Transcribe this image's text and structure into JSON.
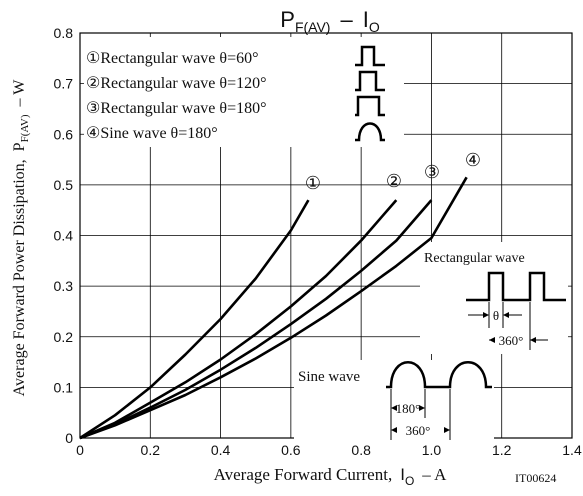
{
  "chart_data": {
    "type": "line",
    "title": "PF(AV) − IO",
    "title_parts": {
      "p": "P",
      "p_sub": "F(AV)",
      "dash": "–",
      "i": "I",
      "i_sub": "O"
    },
    "xlabel": "Average Forward Current, IO – A",
    "xlabel_parts": {
      "text": "Average Forward Current,",
      "i": "I",
      "i_sub": "O",
      "unit": "– A"
    },
    "ylabel": "Average Forward Power Dissipation, PF(AV) – W",
    "ylabel_parts": {
      "text": "Average Forward Power Dissipation,",
      "p": "P",
      "p_sub": "F(AV)",
      "unit": "– W"
    },
    "xlim": [
      0,
      1.4
    ],
    "ylim": [
      0,
      0.8
    ],
    "x_ticks": [
      "0",
      "0.2",
      "0.4",
      "0.6",
      "0.8",
      "1.0",
      "1.2",
      "1.4"
    ],
    "y_ticks": [
      "0",
      "0.1",
      "0.2",
      "0.3",
      "0.4",
      "0.5",
      "0.6",
      "0.7",
      "0.8"
    ],
    "grid": true,
    "legend": [
      {
        "marker": "①",
        "text": "Rectangular wave θ=60°",
        "shape": "rect-narrow"
      },
      {
        "marker": "②",
        "text": "Rectangular wave θ=120°",
        "shape": "rect"
      },
      {
        "marker": "③",
        "text": "Rectangular wave θ=180°",
        "shape": "rect-wide"
      },
      {
        "marker": "④",
        "text": "Sine wave θ=180°",
        "shape": "sine"
      }
    ],
    "series": [
      {
        "marker": "①",
        "x": [
          0,
          0.1,
          0.2,
          0.3,
          0.4,
          0.5,
          0.6,
          0.65
        ],
        "y": [
          0,
          0.045,
          0.1,
          0.165,
          0.235,
          0.315,
          0.41,
          0.47
        ]
      },
      {
        "marker": "②",
        "x": [
          0,
          0.1,
          0.2,
          0.3,
          0.4,
          0.5,
          0.6,
          0.7,
          0.8,
          0.9
        ],
        "y": [
          0,
          0.03,
          0.07,
          0.11,
          0.155,
          0.205,
          0.26,
          0.32,
          0.39,
          0.47
        ]
      },
      {
        "marker": "③",
        "x": [
          0,
          0.1,
          0.2,
          0.3,
          0.4,
          0.5,
          0.6,
          0.7,
          0.8,
          0.9,
          1.0
        ],
        "y": [
          0,
          0.027,
          0.06,
          0.095,
          0.135,
          0.178,
          0.225,
          0.275,
          0.33,
          0.39,
          0.47
        ]
      },
      {
        "marker": "④",
        "x": [
          0,
          0.1,
          0.2,
          0.3,
          0.4,
          0.5,
          0.6,
          0.7,
          0.8,
          0.9,
          1.0,
          1.1
        ],
        "y": [
          0,
          0.025,
          0.055,
          0.085,
          0.12,
          0.157,
          0.198,
          0.242,
          0.29,
          0.34,
          0.395,
          0.515
        ]
      }
    ],
    "annotations": {
      "rect_wave_label": "Rectangular wave",
      "theta_label": "θ",
      "rect_period_label": "360°",
      "sine_wave_label": "Sine wave",
      "sine_half_label": "180°",
      "sine_period_label": "360°"
    },
    "figure_id": "IT00624"
  }
}
